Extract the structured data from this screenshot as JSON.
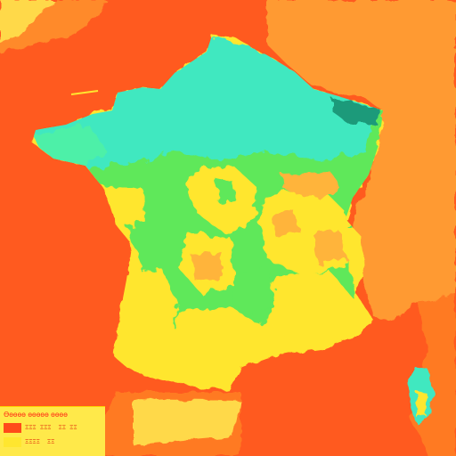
{
  "map": {
    "title": "",
    "colors": {
      "sea": "#ff5a1f",
      "neighbor_land": "#ff9a32",
      "low": "#ffe62f",
      "mid": "#5ee85a",
      "high": "#3fe8c0"
    },
    "regions": [
      "France",
      "Corsica"
    ]
  },
  "legend": {
    "title": "Ѳѳѳѳѳ ѳѳѳѳѳ ѳѳѳѳ",
    "items": [
      {
        "swatch_color": "#ff4a1a",
        "label": "ΞΞΞ ΞΞΞ",
        "label_right": "ΞΞ ΞΞ"
      },
      {
        "swatch_color": "#ffe62f",
        "label": "ΞΞΞΞ",
        "label_right": "ΞΞ"
      }
    ]
  }
}
